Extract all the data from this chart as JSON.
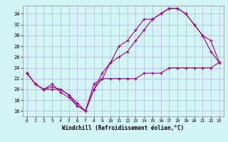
{
  "xlabel": "Windchill (Refroidissement éolien,°C)",
  "background_color": "#d4f5f5",
  "grid_color": "#b0b8d8",
  "line_color": "#990099",
  "ylim": [
    15,
    35.5
  ],
  "xlim": [
    -0.5,
    23.5
  ],
  "yticks": [
    16,
    18,
    20,
    22,
    24,
    26,
    28,
    30,
    32,
    34
  ],
  "xticks": [
    0,
    1,
    2,
    3,
    4,
    5,
    6,
    7,
    8,
    9,
    10,
    11,
    12,
    13,
    14,
    15,
    16,
    17,
    18,
    19,
    20,
    21,
    22,
    23
  ],
  "line1_x": [
    0,
    1,
    2,
    3,
    4,
    5,
    6,
    7,
    8,
    9,
    10,
    11,
    12,
    13,
    14,
    15,
    16,
    17,
    18,
    19,
    20,
    21,
    22,
    23
  ],
  "line1_y": [
    23,
    21,
    20,
    21,
    19.5,
    18.5,
    17,
    16,
    20,
    23,
    25,
    28,
    29,
    31,
    33,
    33,
    34,
    35,
    35,
    34,
    32,
    30,
    29,
    25
  ],
  "line2_x": [
    0,
    1,
    2,
    3,
    4,
    5,
    6,
    7,
    8,
    9,
    10,
    11,
    12,
    13,
    14,
    15,
    16,
    17,
    18,
    19,
    20,
    21,
    22,
    23
  ],
  "line2_y": [
    23,
    21,
    20,
    20.5,
    20,
    19,
    17.5,
    16,
    20,
    22,
    25,
    26,
    27,
    29,
    31,
    33,
    34,
    35,
    35,
    34,
    32,
    30,
    27,
    25
  ],
  "line3_x": [
    0,
    1,
    2,
    3,
    4,
    5,
    6,
    7,
    8,
    9,
    10,
    11,
    12,
    13,
    14,
    15,
    16,
    17,
    18,
    19,
    20,
    21,
    22,
    23
  ],
  "line3_y": [
    23,
    21,
    20,
    20,
    20,
    19,
    17,
    16,
    21,
    22,
    22,
    22,
    22,
    22,
    23,
    23,
    23,
    24,
    24,
    24,
    24,
    24,
    24,
    25
  ]
}
